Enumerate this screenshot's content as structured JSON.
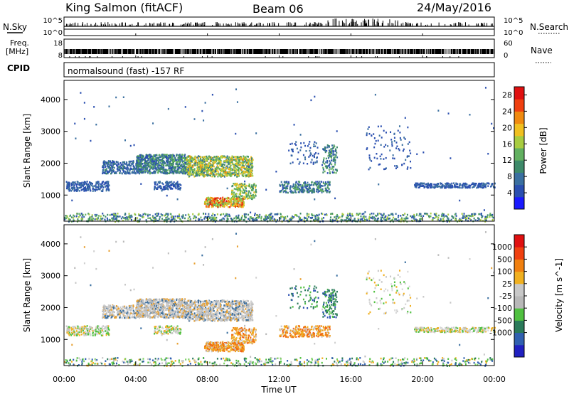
{
  "header": {
    "station": "King Salmon (fitACF)",
    "beam": "Beam 06",
    "date": "24/May/2016"
  },
  "top_panel": {
    "left_label_top": "N.Sky",
    "left_label_bottom": "Freq.",
    "left_label_unit": "[MHz]",
    "cpid_label": "CPID",
    "right_label_top": "N.Search",
    "right_label_bottom": "Nave",
    "noise_ticks": [
      "10^5",
      "10^0"
    ],
    "freq_ticks": [
      "18",
      "8"
    ],
    "nave_ticks": [
      "60",
      "0"
    ],
    "cpid_text": "normalsound (fast) -157 RF"
  },
  "chart_data": [
    {
      "type": "heatmap",
      "name": "power",
      "ylabel": "Slant Range [km]",
      "xlabel": "Time UT",
      "x_ticks": [
        "00:00",
        "04:00",
        "08:00",
        "12:00",
        "16:00",
        "20:00",
        "00:00"
      ],
      "xlim_hours": [
        0,
        24
      ],
      "ylim_km": [
        180,
        4600
      ],
      "y_ticks": [
        1000,
        2000,
        3000,
        4000
      ],
      "colorbar": {
        "label": "Power [dB]",
        "ticks": [
          4,
          8,
          12,
          16,
          20,
          24,
          28
        ],
        "range": [
          0,
          30
        ],
        "colors": [
          "#1a1aff",
          "#2a4fb0",
          "#3a6fa0",
          "#3e8a6a",
          "#62b060",
          "#a8cc40",
          "#f0c020",
          "#f08a10",
          "#f04010",
          "#e01010"
        ]
      }
    },
    {
      "type": "heatmap",
      "name": "velocity",
      "ylabel": "Slant Range [km]",
      "xlabel": "Time UT",
      "x_ticks": [
        "00:00",
        "04:00",
        "08:00",
        "12:00",
        "16:00",
        "20:00",
        "00:00"
      ],
      "xlim_hours": [
        0,
        24
      ],
      "ylim_km": [
        180,
        4600
      ],
      "y_ticks": [
        1000,
        2000,
        3000,
        4000
      ],
      "colorbar": {
        "label": "Velocity [m s^-1]",
        "ticks": [
          "1000",
          "500",
          "100",
          "25",
          "-25",
          "-100",
          "-500",
          "-1000"
        ],
        "colors": [
          "#2020c0",
          "#3060b0",
          "#2a7a5a",
          "#50c040",
          "#b8b8b8",
          "#c8c8c8",
          "#f0b020",
          "#f08010",
          "#f04010",
          "#e01010"
        ]
      }
    }
  ]
}
